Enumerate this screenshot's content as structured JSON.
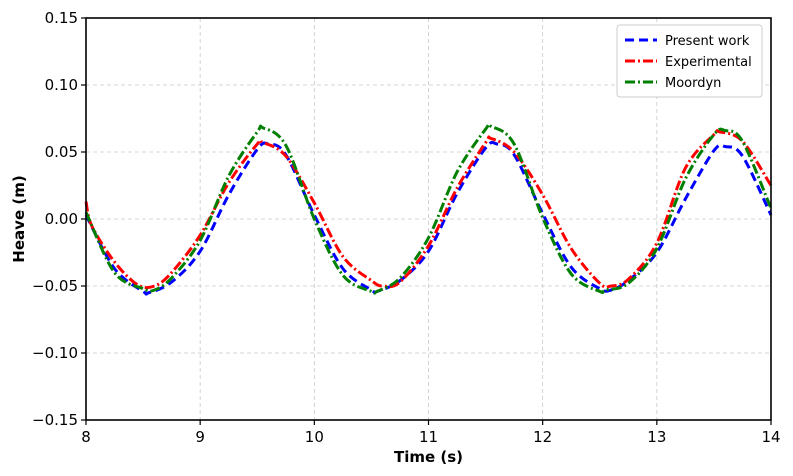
{
  "chart_data": {
    "type": "line",
    "title": "",
    "xlabel": "Time (s)",
    "ylabel": "Heave (m)",
    "xlim": [
      8,
      14
    ],
    "ylim": [
      -0.15,
      0.15
    ],
    "xticks": [
      8,
      9,
      10,
      11,
      12,
      13,
      14
    ],
    "xtick_labels": [
      "8",
      "9",
      "10",
      "11",
      "12",
      "13",
      "14"
    ],
    "yticks": [
      -0.15,
      -0.1,
      -0.05,
      0.0,
      0.05,
      0.1,
      0.15
    ],
    "ytick_labels": [
      "−0.15",
      "−0.10",
      "−0.05",
      "0.00",
      "0.05",
      "0.10",
      "0.15"
    ],
    "grid": true,
    "legend_position": "top-right",
    "series": [
      {
        "name": "Present work",
        "color": "#0000ff",
        "dash": "dashed",
        "x": [
          8.0,
          8.25,
          8.5,
          8.55,
          8.75,
          9.0,
          9.25,
          9.5,
          9.6,
          9.75,
          10.0,
          10.25,
          10.5,
          10.55,
          10.75,
          11.0,
          11.25,
          11.5,
          11.6,
          11.75,
          12.0,
          12.25,
          12.5,
          12.6,
          12.75,
          13.0,
          13.25,
          13.5,
          13.6,
          13.75,
          14.0
        ],
        "y": [
          0.003,
          -0.037,
          -0.054,
          -0.055,
          -0.047,
          -0.024,
          0.018,
          0.052,
          0.056,
          0.048,
          0.003,
          -0.037,
          -0.053,
          -0.054,
          -0.046,
          -0.024,
          0.019,
          0.053,
          0.056,
          0.048,
          0.004,
          -0.036,
          -0.052,
          -0.053,
          -0.046,
          -0.025,
          0.015,
          0.051,
          0.054,
          0.047,
          0.003
        ]
      },
      {
        "name": "Experimental",
        "color": "#ff0000",
        "dash": "dashdot",
        "x": [
          8.0,
          8.05,
          8.25,
          8.45,
          8.6,
          8.75,
          9.0,
          9.25,
          9.5,
          9.55,
          9.75,
          10.0,
          10.25,
          10.5,
          10.6,
          10.75,
          11.0,
          11.25,
          11.5,
          11.55,
          11.75,
          12.0,
          12.25,
          12.5,
          12.6,
          12.75,
          13.0,
          13.25,
          13.5,
          13.55,
          13.75,
          14.0
        ],
        "y": [
          0.013,
          -0.005,
          -0.032,
          -0.049,
          -0.05,
          -0.04,
          -0.012,
          0.027,
          0.056,
          0.057,
          0.047,
          0.012,
          -0.028,
          -0.046,
          -0.05,
          -0.047,
          -0.02,
          0.023,
          0.057,
          0.06,
          0.05,
          0.018,
          -0.022,
          -0.048,
          -0.05,
          -0.045,
          -0.018,
          0.038,
          0.063,
          0.065,
          0.058,
          0.025
        ]
      },
      {
        "name": "Moordyn",
        "color": "#008000",
        "dash": "dashdot",
        "x": [
          8.0,
          8.25,
          8.5,
          8.6,
          8.75,
          9.0,
          9.25,
          9.5,
          9.55,
          9.75,
          10.0,
          10.25,
          10.5,
          10.55,
          10.75,
          11.0,
          11.25,
          11.5,
          11.55,
          11.75,
          12.0,
          12.25,
          12.5,
          12.55,
          12.75,
          13.0,
          13.25,
          13.5,
          13.6,
          13.75,
          14.0
        ],
        "y": [
          0.005,
          -0.04,
          -0.052,
          -0.053,
          -0.044,
          -0.016,
          0.032,
          0.065,
          0.068,
          0.055,
          0.0,
          -0.042,
          -0.054,
          -0.054,
          -0.044,
          -0.014,
          0.035,
          0.067,
          0.069,
          0.056,
          0.001,
          -0.041,
          -0.054,
          -0.053,
          -0.048,
          -0.022,
          0.03,
          0.063,
          0.066,
          0.058,
          0.008
        ]
      }
    ]
  }
}
